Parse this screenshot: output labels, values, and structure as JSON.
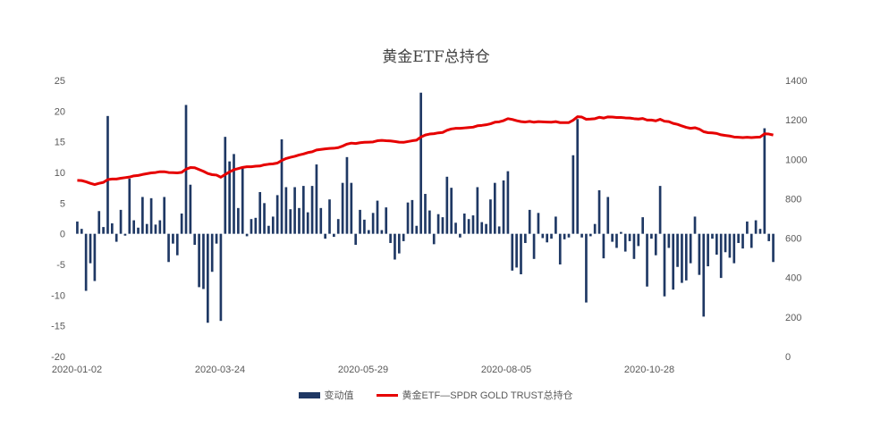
{
  "chart_data": {
    "type": "bar+line",
    "title": "黄金ETF总持仓",
    "x_tick_labels": [
      "2020-01-02",
      "2020-03-24",
      "2020-05-29",
      "2020-08-05",
      "2020-10-28"
    ],
    "left_axis": {
      "ylim": [
        -20,
        25
      ],
      "ticks": [
        25,
        20,
        15,
        10,
        5,
        0,
        -5,
        -10,
        -15,
        -20
      ]
    },
    "right_axis": {
      "ylim": [
        0,
        1400
      ],
      "ticks": [
        1400,
        1200,
        1000,
        800,
        600,
        400,
        200,
        0
      ]
    },
    "grid": false,
    "legend_position": "bottom",
    "colors": {
      "bars": "#1f3864",
      "line": "#e60000"
    },
    "series": [
      {
        "name": "变动值",
        "type": "bar",
        "axis": "left",
        "values": [
          2.0,
          0.8,
          -9.3,
          -4.8,
          -7.7,
          3.7,
          1.1,
          19.2,
          1.7,
          -1.3,
          3.9,
          -0.3,
          9.0,
          2.2,
          1.0,
          6.0,
          1.6,
          5.8,
          1.5,
          2.2,
          6.0,
          -4.6,
          -1.6,
          -3.5,
          3.3,
          21.0,
          8.0,
          -1.8,
          -8.7,
          -9.0,
          -14.5,
          -6.2,
          -1.6,
          -14.2,
          15.8,
          11.8,
          13.0,
          4.2,
          10.8,
          -0.4,
          2.4,
          2.6,
          6.8,
          5.0,
          1.3,
          2.8,
          6.3,
          15.4,
          7.6,
          4.0,
          7.6,
          4.2,
          7.8,
          3.5,
          7.8,
          11.3,
          4.2,
          -0.8,
          5.6,
          -0.5,
          2.4,
          8.3,
          12.5,
          8.3,
          -1.8,
          3.9,
          2.3,
          0.6,
          3.4,
          5.4,
          0.6,
          4.3,
          -1.5,
          -4.2,
          -3.2,
          -1.2,
          5.1,
          5.5,
          1.3,
          23.0,
          6.5,
          3.8,
          -1.7,
          3.2,
          2.7,
          9.3,
          7.5,
          1.8,
          -0.6,
          3.3,
          2.4,
          3.0,
          7.6,
          1.9,
          1.6,
          5.6,
          8.3,
          1.2,
          8.7,
          10.2,
          -6.0,
          -5.5,
          -6.6,
          -1.5,
          3.9,
          -4.1,
          3.4,
          -0.7,
          -1.4,
          -0.8,
          2.8,
          -5.0,
          -0.9,
          -0.6,
          12.8,
          18.7,
          -0.6,
          -11.2,
          -0.4,
          1.6,
          7.1,
          -4.0,
          6.0,
          -1.3,
          -2.3,
          0.3,
          -2.9,
          -1.2,
          -4.1,
          -2.0,
          2.7,
          -8.6,
          -0.8,
          -3.5,
          7.8,
          -10.2,
          -2.3,
          -9.1,
          -5.4,
          -8.0,
          -7.6,
          -4.8,
          2.8,
          -6.7,
          -13.5,
          -5.3,
          -0.8,
          -3.4,
          -7.2,
          -3.0,
          -3.9,
          -4.8,
          -1.5,
          -2.4,
          2.0,
          -2.3,
          2.2,
          0.8,
          17.2,
          -1.2,
          -4.6
        ]
      },
      {
        "name": "黄金ETF—SPDR GOLD TRUST总持仓",
        "type": "line",
        "axis": "right",
        "values": [
          893,
          892,
          886,
          878,
          872,
          878,
          883,
          897,
          900,
          900,
          904,
          907,
          910,
          916,
          918,
          923,
          927,
          931,
          933,
          937,
          937,
          933,
          932,
          931,
          934,
          950,
          958,
          957,
          948,
          939,
          928,
          922,
          920,
          909,
          923,
          936,
          947,
          953,
          959,
          962,
          962,
          965,
          966,
          972,
          975,
          977,
          981,
          994,
          1004,
          1010,
          1015,
          1022,
          1027,
          1034,
          1038,
          1047,
          1050,
          1053,
          1055,
          1056,
          1059,
          1067,
          1077,
          1082,
          1080,
          1084,
          1086,
          1087,
          1088,
          1094,
          1096,
          1094,
          1093,
          1090,
          1087,
          1086,
          1090,
          1094,
          1097,
          1113,
          1123,
          1128,
          1130,
          1134,
          1136,
          1147,
          1154,
          1157,
          1157,
          1159,
          1161,
          1163,
          1170,
          1172,
          1175,
          1180,
          1188,
          1190,
          1196,
          1206,
          1202,
          1196,
          1191,
          1189,
          1192,
          1188,
          1191,
          1190,
          1189,
          1188,
          1191,
          1186,
          1186,
          1186,
          1198,
          1216,
          1214,
          1203,
          1204,
          1206,
          1213,
          1209,
          1215,
          1214,
          1212,
          1212,
          1210,
          1209,
          1206,
          1204,
          1207,
          1199,
          1199,
          1195,
          1203,
          1193,
          1191,
          1182,
          1177,
          1169,
          1162,
          1157,
          1160,
          1153,
          1140,
          1135,
          1134,
          1131,
          1124,
          1121,
          1118,
          1113,
          1112,
          1110,
          1112,
          1110,
          1112,
          1113,
          1129,
          1128,
          1123
        ]
      }
    ]
  }
}
